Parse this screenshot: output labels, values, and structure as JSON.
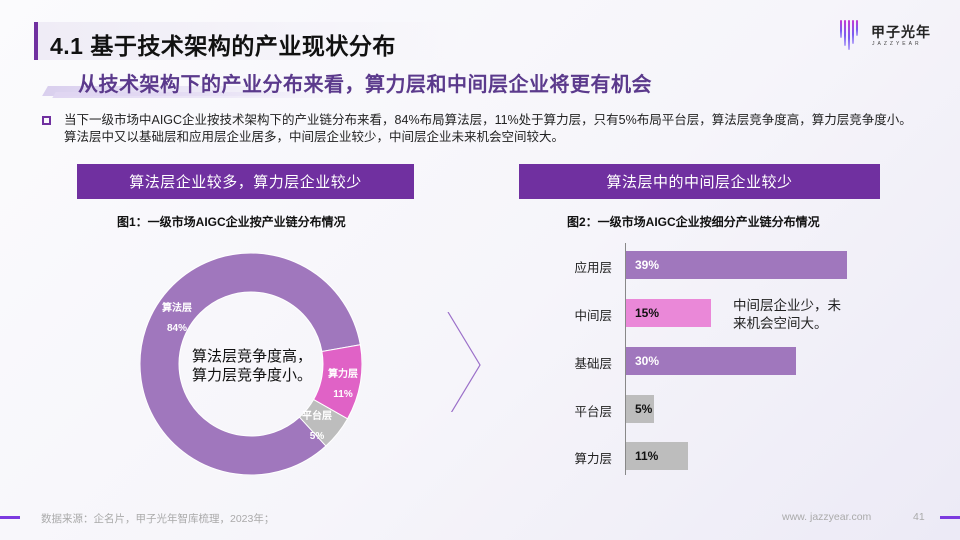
{
  "header": {
    "title": "4.1 基于技术架构的产业现状分布",
    "subtitle": "从技术架构下的产业分布来看，算力层和中间层企业将更有机会"
  },
  "logo": {
    "name_cn": "甲子光年",
    "name_en": "JAZZYEAR"
  },
  "summary": {
    "bullet_icon": "hollow-square-bullet",
    "text": "当下一级市场中AIGC企业按技术架构下的产业链分布来看，84%布局算法层，11%处于算力层，只有5%布局平台层，算法层竞争度高，算力层竞争度小。算法层中又以基础层和应用层企业居多，中间层企业较少，中间层企业未来机会空间较大。"
  },
  "left_panel": {
    "header": "算法层企业较多，算力层企业较少",
    "figure_title": "图1：一级市场AIGC企业按产业链分布情况",
    "center_annotation_line1": "算法层竞争度高，",
    "center_annotation_line2": "算力层竞争度小。"
  },
  "right_panel": {
    "header": "算法层中的中间层企业较少",
    "figure_title": "图2：一级市场AIGC企业按细分产业链分布情况",
    "annotation_line1": "中间层企业少，未",
    "annotation_line2": "来机会空间大。"
  },
  "arrow": {
    "icon": "chevron-right-outline-icon",
    "color": "#9b6fc9"
  },
  "chart_data": [
    {
      "type": "pie",
      "variant": "donut",
      "title": "图1：一级市场AIGC企业按产业链分布情况",
      "categories": [
        "算法层",
        "算力层",
        "平台层"
      ],
      "values": [
        84,
        11,
        5
      ],
      "labels": [
        "84%",
        "11%",
        "5%"
      ],
      "colors": [
        "#a077bd",
        "#e062c6",
        "#bdbdbd"
      ],
      "legend": "none (inline data labels)",
      "center_text": "算法层竞争度高，算力层竞争度小。"
    },
    {
      "type": "bar",
      "orientation": "horizontal",
      "title": "图2：一级市场AIGC企业按细分产业链分布情况",
      "categories": [
        "应用层",
        "中间层",
        "基础层",
        "平台层",
        "算力层"
      ],
      "values": [
        39,
        15,
        30,
        5,
        11
      ],
      "labels": [
        "39%",
        "15%",
        "30%",
        "5%",
        "11%"
      ],
      "colors": [
        "#a077bd",
        "#ea88d8",
        "#a077bd",
        "#bdbdbd",
        "#bdbdbd"
      ],
      "label_colors": [
        "#ffffff",
        "#111111",
        "#ffffff",
        "#111111",
        "#111111"
      ],
      "xlabel": "",
      "ylabel": "",
      "grid": false,
      "annotation": "中间层企业少，未来机会空间大。"
    }
  ],
  "footer": {
    "source": "数据来源：企名片，甲子光年智库梳理，2023年；",
    "website": "www. jazzyear.com",
    "page_number": "41"
  }
}
